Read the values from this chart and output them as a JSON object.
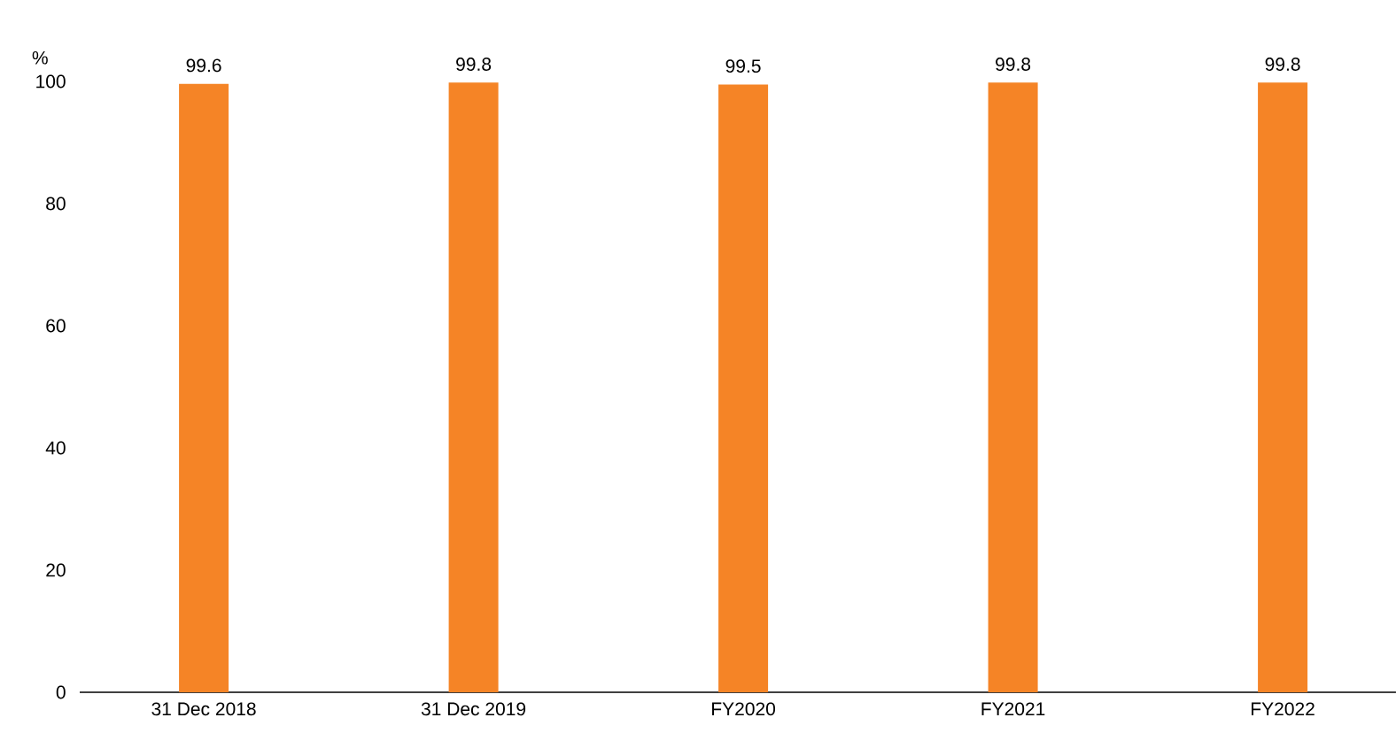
{
  "chart_data": {
    "type": "bar",
    "ylabel": "%",
    "categories": [
      "31 Dec 2018",
      "31 Dec 2019",
      "FY2020",
      "FY2021",
      "FY2022"
    ],
    "values": [
      99.6,
      99.8,
      99.5,
      99.8,
      99.8
    ],
    "color": "#f58426",
    "ylim": [
      0,
      100
    ],
    "yticks": [
      0,
      20,
      40,
      60,
      80,
      100
    ],
    "data_labels": true
  }
}
